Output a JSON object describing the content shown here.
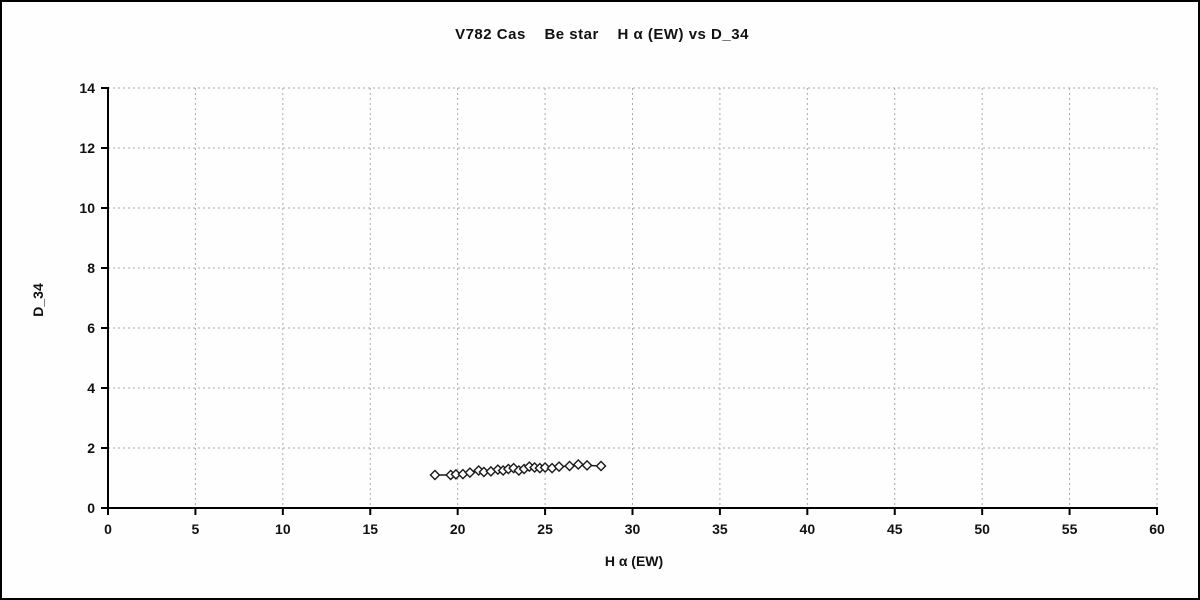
{
  "chart_data": {
    "type": "scatter",
    "title": "V782 Cas    Be star    H α (EW) vs D_34",
    "xlabel": "H α (EW)",
    "ylabel": "D_34",
    "xlim": [
      0,
      60
    ],
    "ylim": [
      0,
      14
    ],
    "xticks": [
      0,
      5,
      10,
      15,
      20,
      25,
      30,
      35,
      40,
      45,
      50,
      55,
      60
    ],
    "yticks": [
      0,
      2,
      4,
      6,
      8,
      10,
      12,
      14
    ],
    "grid": true,
    "legend": "none",
    "marker": "open-diamond",
    "line_color": "#1a1a1a",
    "grid_color": "#aaaaaa",
    "series": [
      {
        "name": "H α (EW) vs D_34",
        "points": [
          [
            18.7,
            1.1
          ],
          [
            19.6,
            1.1
          ],
          [
            19.9,
            1.12
          ],
          [
            20.3,
            1.13
          ],
          [
            20.7,
            1.18
          ],
          [
            21.2,
            1.25
          ],
          [
            21.5,
            1.2
          ],
          [
            21.9,
            1.22
          ],
          [
            22.3,
            1.28
          ],
          [
            22.6,
            1.25
          ],
          [
            22.9,
            1.3
          ],
          [
            23.2,
            1.33
          ],
          [
            23.5,
            1.25
          ],
          [
            23.8,
            1.3
          ],
          [
            24.1,
            1.38
          ],
          [
            24.4,
            1.35
          ],
          [
            24.7,
            1.33
          ],
          [
            25.0,
            1.35
          ],
          [
            25.4,
            1.33
          ],
          [
            25.8,
            1.38
          ],
          [
            26.4,
            1.4
          ],
          [
            26.9,
            1.45
          ],
          [
            27.4,
            1.42
          ],
          [
            28.2,
            1.4
          ]
        ]
      }
    ]
  }
}
